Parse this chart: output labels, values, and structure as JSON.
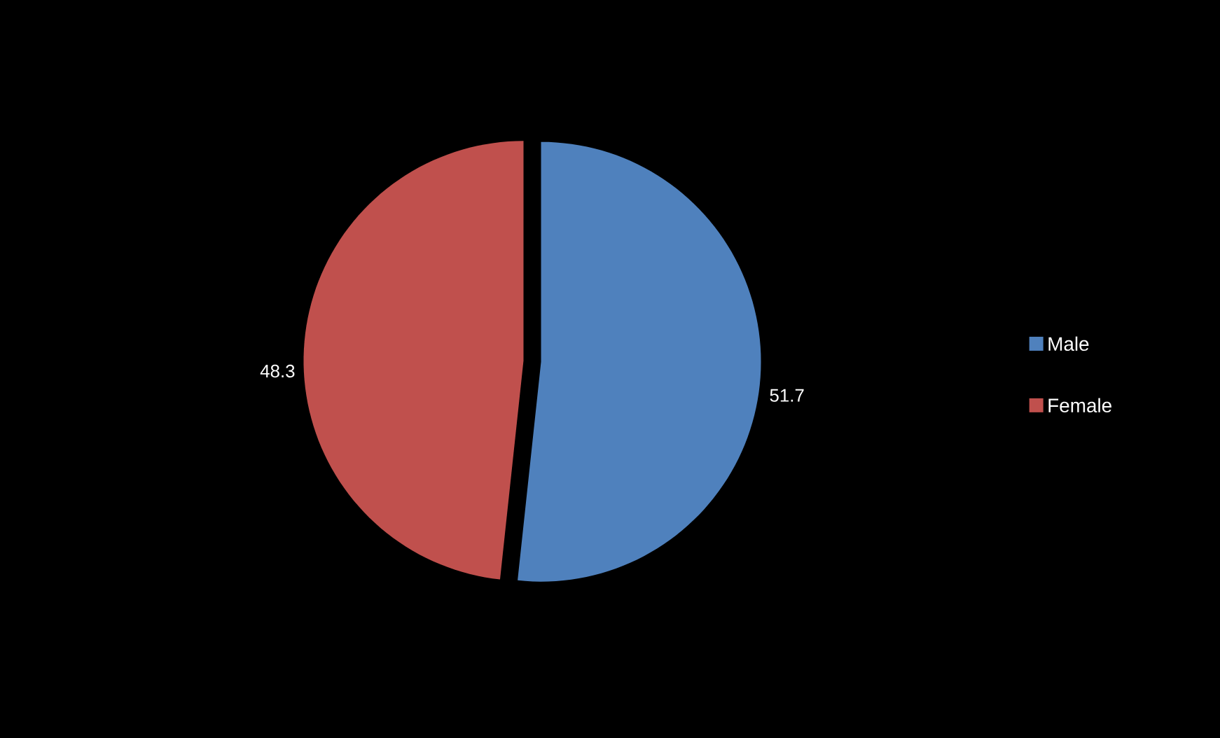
{
  "chart_data": {
    "type": "pie",
    "categories": [
      "Male",
      "Female"
    ],
    "values": [
      51.7,
      48.3
    ],
    "colors": [
      "#4f81bd",
      "#c0504d"
    ],
    "data_labels": true,
    "legend": "right"
  }
}
